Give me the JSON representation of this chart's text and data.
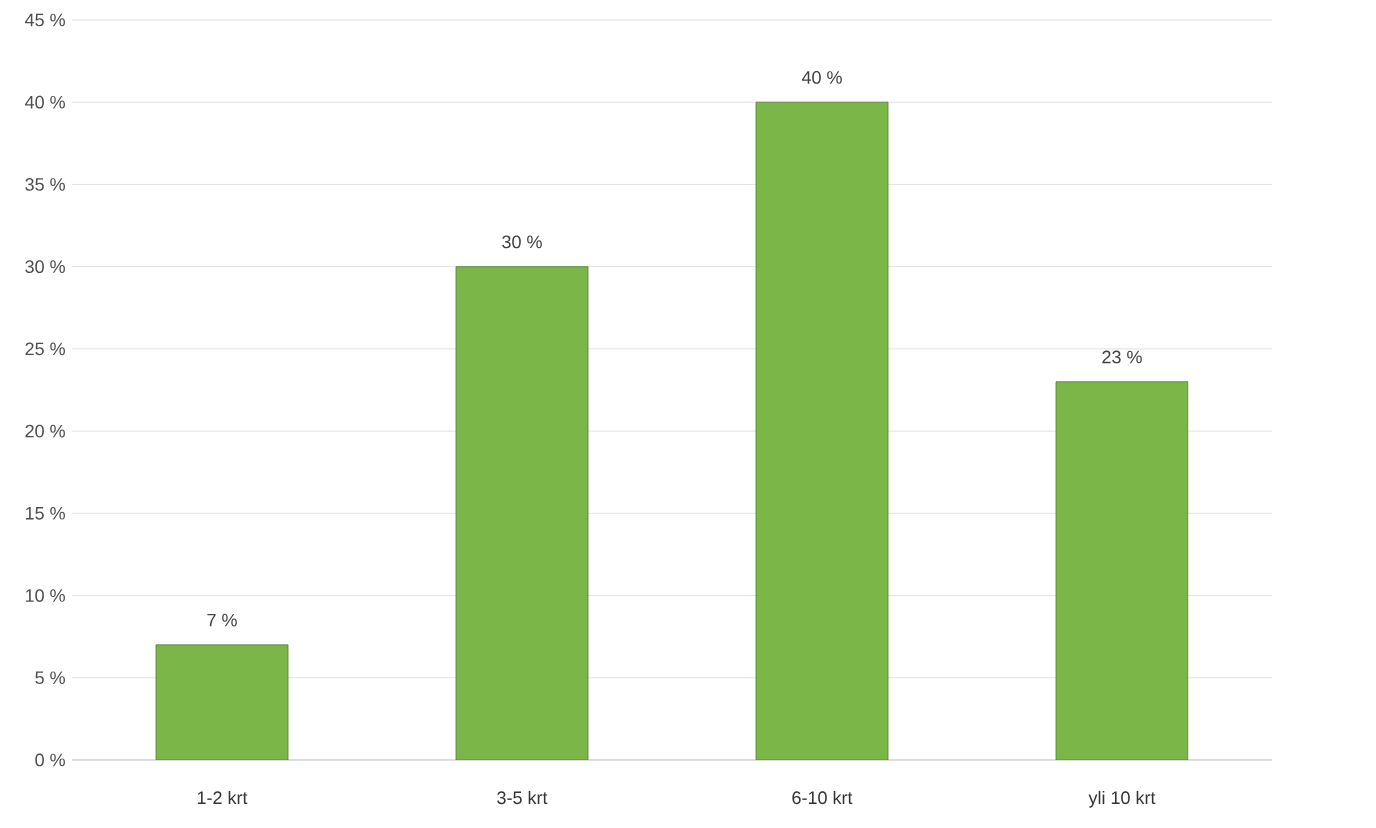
{
  "chart_data": {
    "type": "bar",
    "categories": [
      "1-2 krt",
      "3-5 krt",
      "6-10 krt",
      "yli 10 krt"
    ],
    "values": [
      7,
      30,
      40,
      23
    ],
    "value_labels": [
      "7 %",
      "30 %",
      "40 %",
      "23 %"
    ],
    "color": "#7ab648",
    "ylim": [
      0,
      45
    ],
    "yticks": [
      {
        "value": 0,
        "label": "0 %"
      },
      {
        "value": 5,
        "label": "5 %"
      },
      {
        "value": 10,
        "label": "10 %"
      },
      {
        "value": 15,
        "label": "15 %"
      },
      {
        "value": 20,
        "label": "20 %"
      },
      {
        "value": 25,
        "label": "25 %"
      },
      {
        "value": 30,
        "label": "30 %"
      },
      {
        "value": 35,
        "label": "35 %"
      },
      {
        "value": 40,
        "label": "40 %"
      },
      {
        "value": 45,
        "label": "45 %"
      }
    ],
    "grid": "y"
  }
}
